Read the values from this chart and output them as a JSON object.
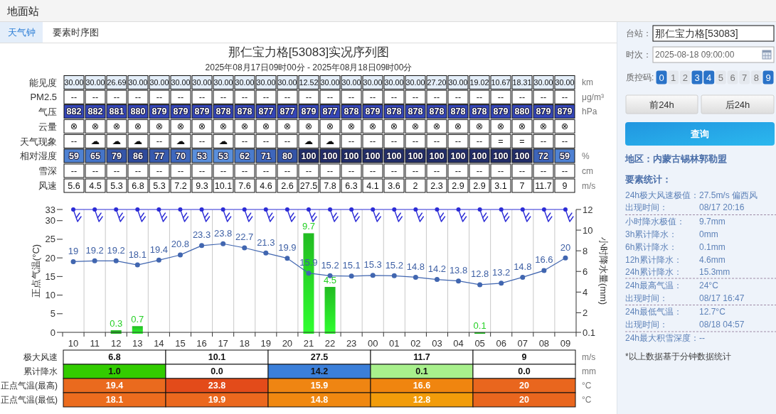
{
  "chart_data": [
    {
      "type": "other",
      "annotations": [
        "地面站",
        "天气钟",
        "要素时序图"
      ]
    },
    {
      "type": "heatmap",
      "title": "那仁宝力格[53083]实况序列图",
      "subtitle": "2025年08月17日09时00分 - 2025年08月18日09时00分",
      "categories": [
        null,
        null,
        null,
        null,
        null,
        null,
        null,
        null,
        null,
        null,
        null,
        null,
        null,
        null,
        null,
        null,
        null,
        null,
        null,
        null,
        null,
        null,
        null,
        null
      ],
      "y_categories": [
        "能见度",
        "PM2.5",
        "气压",
        "云量",
        "天气现象",
        "相对湿度",
        "雪深",
        "风速"
      ],
      "y2_categories": [
        "km",
        "μg/m³",
        "hPa",
        null,
        null,
        "%",
        "cm",
        "m/s"
      ],
      "cells": [
        [
          30,
          30,
          26.69,
          30,
          30,
          30,
          30,
          30,
          30,
          30,
          30,
          12.52,
          30,
          30,
          30,
          30,
          30,
          27.2,
          30,
          19.02,
          10.67,
          18.31,
          30,
          30
        ],
        [
          null,
          null,
          null,
          null,
          null,
          null,
          null,
          null,
          null,
          null,
          null,
          null,
          null,
          null,
          null,
          null,
          null,
          null,
          null,
          null,
          null,
          null,
          null,
          null
        ],
        [
          882,
          882,
          881,
          880,
          879,
          879,
          879,
          878,
          878,
          877,
          877,
          879,
          877,
          878,
          879,
          878,
          878,
          878,
          878,
          878,
          879,
          880,
          879,
          879
        ],
        [
          null,
          null,
          null,
          null,
          null,
          null,
          null,
          null,
          null,
          null,
          null,
          null,
          null,
          null,
          null,
          null,
          null,
          null,
          null,
          null,
          null,
          null,
          null,
          null
        ],
        [
          null,
          null,
          null,
          null,
          null,
          null,
          null,
          null,
          null,
          null,
          null,
          null,
          null,
          null,
          null,
          null,
          null,
          null,
          null,
          null,
          null,
          null,
          null,
          null
        ],
        [
          59,
          65,
          79,
          86,
          77,
          70,
          53,
          53,
          62,
          71,
          80,
          100,
          100,
          100,
          100,
          100,
          100,
          100,
          100,
          100,
          100,
          100,
          72,
          59
        ],
        [
          null,
          null,
          null,
          null,
          null,
          null,
          null,
          null,
          null,
          null,
          null,
          null,
          null,
          null,
          null,
          null,
          null,
          null,
          null,
          null,
          null,
          null,
          null,
          null
        ],
        [
          5.6,
          4.5,
          5.3,
          6.8,
          5.3,
          7.2,
          9.3,
          10.1,
          7.6,
          4.6,
          2.6,
          27.5,
          7.8,
          6.3,
          4.1,
          3.6,
          2,
          2.3,
          2.9,
          2.9,
          3.1,
          7,
          11.7,
          9
        ]
      ],
      "cell_labels": [
        [
          "30.00",
          "30.00",
          "26.69",
          "30.00",
          "30.00",
          "30.00",
          "30.00",
          "30.00",
          "30.00",
          "30.00",
          "30.00",
          "12.52",
          "30.00",
          "30.00",
          "30.00",
          "30.00",
          "30.00",
          "27.20",
          "30.00",
          "19.02",
          "10.67",
          "18.31",
          "30.00",
          "30.00"
        ],
        [
          "--",
          "--",
          "--",
          "--",
          "--",
          "--",
          "--",
          "--",
          "--",
          "--",
          "--",
          "--",
          "--",
          "--",
          "--",
          "--",
          "--",
          "--",
          "--",
          "--",
          "--",
          "--",
          "--",
          "--"
        ],
        [
          "882",
          "882",
          "881",
          "880",
          "879",
          "879",
          "879",
          "878",
          "878",
          "877",
          "877",
          "879",
          "877",
          "878",
          "879",
          "878",
          "878",
          "878",
          "878",
          "878",
          "879",
          "880",
          "879",
          "879"
        ],
        [
          "⊗",
          "⊗",
          "⊗",
          "⊗",
          "⊗",
          "⊗",
          "⊗",
          "⊗",
          "⊗",
          "⊗",
          "⊗",
          "⊗",
          "⊗",
          "⊗",
          "⊗",
          "⊗",
          "⊗",
          "⊗",
          "⊗",
          "⊗",
          "⊗",
          "⊗",
          "⊗",
          "⊗"
        ],
        [
          "--",
          "☁",
          "☁",
          "☁",
          "--",
          "☁",
          "--",
          "☁",
          "--",
          "--",
          "--",
          "☁",
          "☁",
          "--",
          "--",
          "--",
          "--",
          "--",
          "--",
          "--",
          "=",
          "=",
          "--",
          "--"
        ],
        [
          "59",
          "65",
          "79",
          "86",
          "77",
          "70",
          "53",
          "53",
          "62",
          "71",
          "80",
          "100",
          "100",
          "100",
          "100",
          "100",
          "100",
          "100",
          "100",
          "100",
          "100",
          "100",
          "72",
          "59"
        ],
        [
          "--",
          "--",
          "--",
          "--",
          "--",
          "--",
          "--",
          "--",
          "--",
          "--",
          "--",
          "--",
          "--",
          "--",
          "--",
          "--",
          "--",
          "--",
          "--",
          "--",
          "--",
          "--",
          "--",
          "--"
        ],
        [
          "5.6",
          "4.5",
          "5.3",
          "6.8",
          "5.3",
          "7.2",
          "9.3",
          "10.1",
          "7.6",
          "4.6",
          "2.6",
          "27.5",
          "7.8",
          "6.3",
          "4.1",
          "3.6",
          "2",
          "2.3",
          "2.9",
          "2.9",
          "3.1",
          "7",
          "11.7",
          "9"
        ]
      ],
      "colors": [
        [
          "#e4eef9",
          "#e4eef9",
          "#e4eef9",
          "#e4eef9",
          "#e4eef9",
          "#e4eef9",
          "#e4eef9",
          "#e4eef9",
          "#e4eef9",
          "#e4eef9",
          "#e4eef9",
          "#e4eef9",
          "#e4eef9",
          "#e4eef9",
          "#e4eef9",
          "#e4eef9",
          "#e4eef9",
          "#e4eef9",
          "#e4eef9",
          "#e4eef9",
          "#e4eef9",
          "#e4eef9",
          "#e4eef9",
          "#e4eef9"
        ],
        null,
        [
          "#3446b8",
          "#3446b8",
          "#3446b8",
          "#3446b8",
          "#3446b8",
          "#3446b8",
          "#3446b8",
          "#3446b8",
          "#3446b8",
          "#3446b8",
          "#3446b8",
          "#3446b8",
          "#3446b8",
          "#3446b8",
          "#3446b8",
          "#3446b8",
          "#3446b8",
          "#3446b8",
          "#3446b8",
          "#3446b8",
          "#3446b8",
          "#3446b8",
          "#3446b8",
          "#3446b8"
        ],
        null,
        null,
        [
          "#4f82d3",
          "#4574c8",
          "#3556a9",
          "#2f4b9b",
          "#375aae",
          "#3f68bd",
          "#5a8fdc",
          "#5a8fdc",
          "#4a7bcd",
          "#3e66bb",
          "#3454a6",
          "#222e6a",
          "#222e6a",
          "#222e6a",
          "#222e6a",
          "#222e6a",
          "#222e6a",
          "#222e6a",
          "#222e6a",
          "#222e6a",
          "#222e6a",
          "#222e6a",
          "#3d64b9",
          "#4f82d3"
        ],
        null,
        null
      ]
    },
    {
      "type": "line",
      "categories": [
        "10",
        "11",
        "12",
        "13",
        "14",
        "15",
        "16",
        "17",
        "18",
        "19",
        "20",
        "21",
        "22",
        "23",
        "00",
        "01",
        "02",
        "03",
        "04",
        "05",
        "06",
        "07",
        "08",
        "09"
      ],
      "ylabel": "正点气温(°C)",
      "y2label": "小时降水量(mm)",
      "ylim": [
        0,
        33
      ],
      "yticks": [
        0,
        5,
        10,
        15,
        20,
        25,
        30,
        33
      ],
      "y2lim": [
        0.1,
        12
      ],
      "y2ticks": [
        0.1,
        2,
        4,
        6,
        8,
        10,
        12
      ],
      "grid": "x",
      "series": [
        {
          "type": "bar",
          "axis": "y2",
          "color": "#22bb22",
          "data_labels": true,
          "values": [
            null,
            null,
            0.3,
            0.7,
            null,
            null,
            null,
            null,
            null,
            null,
            null,
            9.7,
            4.5,
            null,
            null,
            null,
            null,
            null,
            null,
            0.1,
            null,
            null,
            null,
            null
          ]
        },
        {
          "type": "line",
          "color": "#4166b0",
          "marker": "circle",
          "data_labels": true,
          "values": [
            19,
            19.2,
            19.2,
            18.1,
            19.4,
            20.8,
            23.3,
            23.8,
            22.7,
            21.3,
            19.9,
            15.9,
            15.2,
            15.1,
            15.3,
            15.2,
            14.8,
            14.2,
            13.8,
            12.8,
            13.2,
            14.8,
            16.6,
            20
          ]
        }
      ]
    },
    {
      "type": "heatmap",
      "categories": [
        null,
        null,
        null,
        null,
        null
      ],
      "y_categories": [
        "极大风速",
        "累计降水",
        "正点气温(最高)",
        "正点气温(最低)"
      ],
      "y2_categories": [
        "m/s",
        "mm",
        "°C",
        "°C"
      ],
      "cells": [
        [
          6.8,
          10.1,
          27.5,
          11.7,
          9
        ],
        [
          1.0,
          0.0,
          14.2,
          0.1,
          0.0
        ],
        [
          19.4,
          23.8,
          15.9,
          16.6,
          20
        ],
        [
          18.1,
          19.9,
          14.8,
          12.8,
          20
        ]
      ],
      "cell_labels": [
        [
          "6.8",
          "10.1",
          "27.5",
          "11.7",
          "9"
        ],
        [
          "1.0",
          "0.0",
          "14.2",
          "0.1",
          "0.0"
        ],
        [
          "19.4",
          "23.8",
          "15.9",
          "16.6",
          "20"
        ],
        [
          "18.1",
          "19.9",
          "14.8",
          "12.8",
          "20"
        ]
      ],
      "colors": [
        null,
        [
          "#33cc00",
          null,
          "#3b7fd9",
          "#a8f08c",
          null
        ],
        [
          "#ea6a1e",
          "#e34b1a",
          "#ef8512",
          "#f0850f",
          "#e9661e"
        ],
        [
          "#ec6c1e",
          "#eb681e",
          "#f08810",
          "#f29c0a",
          "#e9661e"
        ]
      ]
    },
    {
      "type": "other",
      "annotations": [
        "台站：",
        "那仁宝力格[53083]",
        "时次：",
        "2025-08-18 09:00:00",
        "质控码:",
        "0 1 2 3 4 5 6 7 8 9",
        "前24h",
        "后24h",
        "查询",
        "地区：内蒙古锡林郭勒盟",
        "要素统计：",
        "24h极大风速极值：27.5m/s 偏西风",
        "出现时间：",
        "08/17 20:16",
        "小时降水极值：",
        "9.7mm",
        "3h累计降水：",
        "0mm",
        "6h累计降水：",
        "0.1mm",
        "12h累计降水：",
        "4.6mm",
        "24h累计降水：",
        "15.3mm",
        "24h最高气温：",
        "24°C",
        "出现时间：",
        "08/17 16:47",
        "24h最低气温：",
        "12.7°C",
        "出现时间：",
        "08/18 04:57",
        "24h最大积雪深度：--",
        "*以上数据基于分钟数据统计"
      ]
    }
  ]
}
